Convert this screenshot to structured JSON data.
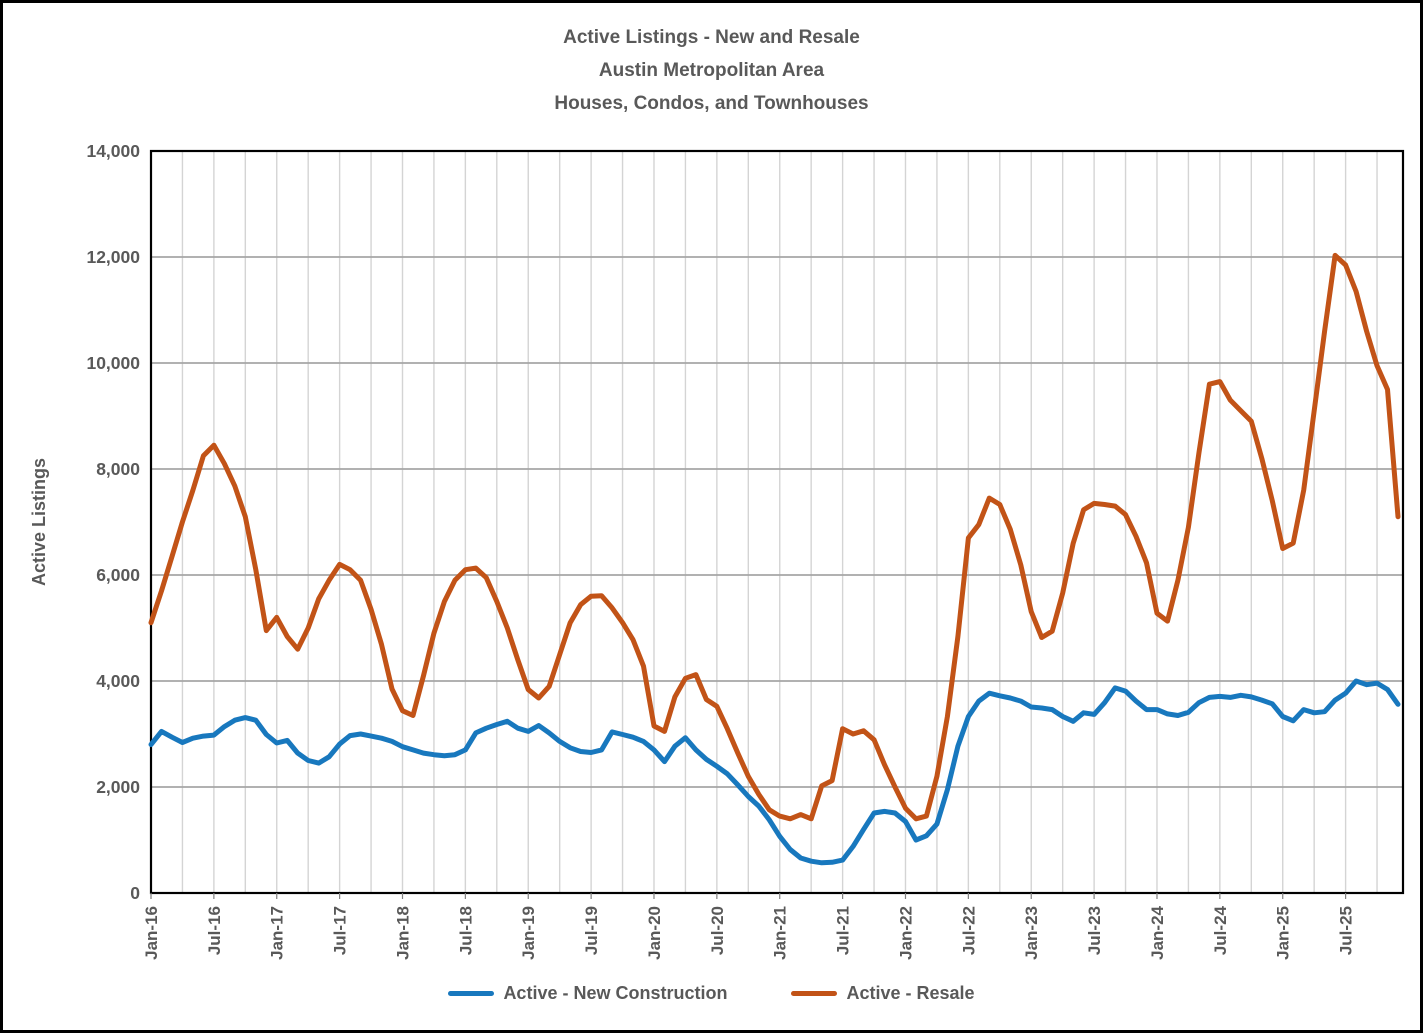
{
  "title_lines": [
    "Active Listings - New and Resale",
    "Austin Metropolitan Area",
    "Houses, Condos, and Townhouses"
  ],
  "colors": {
    "new_construction": "#1878BE",
    "resale": "#C25317",
    "text": "#595959",
    "grid_major": "#A6A6A6",
    "grid_minor": "#D4D4D4",
    "plot_border": "#000000",
    "background": "#FFFFFF"
  },
  "y_axis": {
    "title": "Active Listings",
    "tick_labels": [
      "0",
      "2,000",
      "4,000",
      "6,000",
      "8,000",
      "10,000",
      "12,000",
      "14,000"
    ],
    "min": 0,
    "max": 14000,
    "step": 2000
  },
  "x_axis": {
    "tick_labels": [
      "Jan-16",
      "Jul-16",
      "Jan-17",
      "Jul-17",
      "Jan-18",
      "Jul-18",
      "Jan-19",
      "Jul-19",
      "Jan-20",
      "Jul-20",
      "Jan-21",
      "Jul-21",
      "Jan-22",
      "Jul-22",
      "Jan-23",
      "Jul-23",
      "Jan-24",
      "Jul-24",
      "Jan-25",
      "Jul-25"
    ],
    "tick_every_months": 6,
    "minor_gridline_every_months": 3
  },
  "legend": {
    "items": [
      {
        "label": "Active - New Construction",
        "color_key": "new_construction"
      },
      {
        "label": "Active - Resale",
        "color_key": "resale"
      }
    ]
  },
  "chart_data": {
    "type": "line",
    "title": "Active Listings - New and Resale, Austin Metropolitan Area, Houses, Condos, and Townhouses",
    "xlabel": "",
    "ylabel": "Active Listings",
    "ylim": [
      0,
      14000
    ],
    "grid": true,
    "legend_position": "bottom",
    "x": [
      "Jan-16",
      "Feb-16",
      "Mar-16",
      "Apr-16",
      "May-16",
      "Jun-16",
      "Jul-16",
      "Aug-16",
      "Sep-16",
      "Oct-16",
      "Nov-16",
      "Dec-16",
      "Jan-17",
      "Feb-17",
      "Mar-17",
      "Apr-17",
      "May-17",
      "Jun-17",
      "Jul-17",
      "Aug-17",
      "Sep-17",
      "Oct-17",
      "Nov-17",
      "Dec-17",
      "Jan-18",
      "Feb-18",
      "Mar-18",
      "Apr-18",
      "May-18",
      "Jun-18",
      "Jul-18",
      "Aug-18",
      "Sep-18",
      "Oct-18",
      "Nov-18",
      "Dec-18",
      "Jan-19",
      "Feb-19",
      "Mar-19",
      "Apr-19",
      "May-19",
      "Jun-19",
      "Jul-19",
      "Aug-19",
      "Sep-19",
      "Oct-19",
      "Nov-19",
      "Dec-19",
      "Jan-20",
      "Feb-20",
      "Mar-20",
      "Apr-20",
      "May-20",
      "Jun-20",
      "Jul-20",
      "Aug-20",
      "Sep-20",
      "Oct-20",
      "Nov-20",
      "Dec-20",
      "Jan-21",
      "Feb-21",
      "Mar-21",
      "Apr-21",
      "May-21",
      "Jun-21",
      "Jul-21",
      "Aug-21",
      "Sep-21",
      "Oct-21",
      "Nov-21",
      "Dec-21",
      "Jan-22",
      "Feb-22",
      "Mar-22",
      "Apr-22",
      "May-22",
      "Jun-22",
      "Jul-22",
      "Aug-22",
      "Sep-22",
      "Oct-22",
      "Nov-22",
      "Dec-22",
      "Jan-23",
      "Feb-23",
      "Mar-23",
      "Apr-23",
      "May-23",
      "Jun-23",
      "Jul-23",
      "Aug-23",
      "Sep-23",
      "Oct-23",
      "Nov-23",
      "Dec-23",
      "Jan-24",
      "Feb-24",
      "Mar-24",
      "Apr-24",
      "May-24",
      "Jun-24",
      "Jul-24",
      "Aug-24",
      "Sep-24",
      "Oct-24",
      "Nov-24",
      "Dec-24",
      "Jan-25",
      "Feb-25",
      "Mar-25",
      "Apr-25",
      "May-25",
      "Jun-25",
      "Jul-25",
      "Aug-25",
      "Sep-25",
      "Oct-25",
      "Nov-25",
      "Dec-25"
    ],
    "series": [
      {
        "name": "Active - New Construction",
        "color_key": "new_construction",
        "values": [
          2800,
          3050,
          2940,
          2840,
          2920,
          2960,
          2980,
          3140,
          3260,
          3310,
          3260,
          2990,
          2830,
          2880,
          2640,
          2500,
          2450,
          2570,
          2810,
          2970,
          3000,
          2960,
          2920,
          2860,
          2760,
          2700,
          2640,
          2610,
          2590,
          2610,
          2700,
          3020,
          3110,
          3180,
          3240,
          3110,
          3050,
          3160,
          3020,
          2860,
          2740,
          2670,
          2650,
          2700,
          3040,
          2990,
          2940,
          2860,
          2700,
          2480,
          2770,
          2930,
          2700,
          2520,
          2390,
          2250,
          2040,
          1820,
          1640,
          1380,
          1070,
          820,
          660,
          600,
          570,
          580,
          620,
          880,
          1200,
          1510,
          1540,
          1510,
          1350,
          1000,
          1080,
          1300,
          1950,
          2770,
          3330,
          3620,
          3770,
          3720,
          3680,
          3620,
          3510,
          3490,
          3460,
          3330,
          3240,
          3400,
          3370,
          3590,
          3870,
          3810,
          3620,
          3460,
          3460,
          3380,
          3350,
          3410,
          3590,
          3690,
          3710,
          3690,
          3730,
          3700,
          3640,
          3570,
          3330,
          3250,
          3460,
          3400,
          3420,
          3640,
          3770,
          4000,
          3930,
          3960,
          3840,
          3560
        ]
      },
      {
        "name": "Active - Resale",
        "color_key": "resale",
        "values": [
          5100,
          5700,
          6350,
          7000,
          7600,
          8250,
          8450,
          8100,
          7680,
          7100,
          6100,
          4950,
          5200,
          4840,
          4600,
          5000,
          5550,
          5900,
          6200,
          6100,
          5900,
          5350,
          4690,
          3850,
          3440,
          3350,
          4100,
          4900,
          5500,
          5900,
          6100,
          6130,
          5950,
          5500,
          5000,
          4400,
          3840,
          3680,
          3900,
          4500,
          5100,
          5440,
          5600,
          5610,
          5380,
          5100,
          4780,
          4280,
          3150,
          3050,
          3700,
          4050,
          4120,
          3650,
          3520,
          3100,
          2640,
          2200,
          1860,
          1570,
          1450,
          1400,
          1480,
          1400,
          2020,
          2120,
          3100,
          3000,
          3060,
          2890,
          2420,
          2000,
          1600,
          1400,
          1450,
          2200,
          3330,
          4840,
          6700,
          6950,
          7450,
          7330,
          6860,
          6190,
          5310,
          4820,
          4940,
          5660,
          6600,
          7230,
          7350,
          7330,
          7300,
          7140,
          6730,
          6230,
          5280,
          5130,
          5900,
          6900,
          8300,
          9600,
          9650,
          9300,
          9100,
          8900,
          8200,
          7400,
          6500,
          6600,
          7600,
          9100,
          10600,
          12030,
          11850,
          11350,
          10600,
          9950,
          9500,
          7100
        ]
      }
    ]
  }
}
